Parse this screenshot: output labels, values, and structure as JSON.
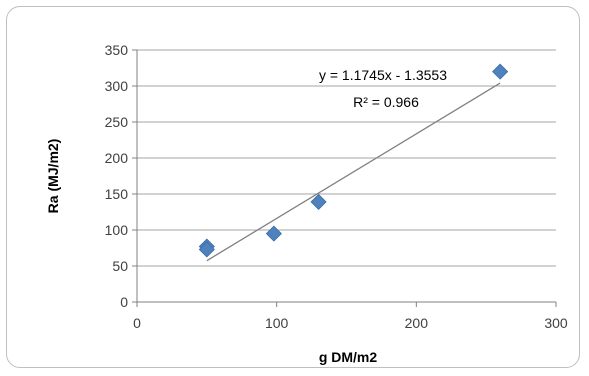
{
  "chart_data": {
    "type": "scatter",
    "title": "",
    "xlabel": "g DM/m2",
    "ylabel": "Ra (MJ/m2)",
    "xlim": [
      0,
      300
    ],
    "ylim": [
      0,
      350
    ],
    "x_ticks": [
      0,
      100,
      200,
      300
    ],
    "y_ticks": [
      0,
      50,
      100,
      150,
      200,
      250,
      300,
      350
    ],
    "grid": "horizontal",
    "legend": "none",
    "marker_color": "#4f81bd",
    "trendline_color": "#808080",
    "points": [
      {
        "x": 50,
        "y": 77
      },
      {
        "x": 50,
        "y": 73
      },
      {
        "x": 98,
        "y": 95
      },
      {
        "x": 130,
        "y": 139
      },
      {
        "x": 260,
        "y": 320
      }
    ],
    "trendline": {
      "type": "linear",
      "slope": 1.1745,
      "intercept": -1.3553,
      "x_range": [
        50,
        260
      ],
      "equation": "y = 1.1745x - 1.3553",
      "r_squared": "R² = 0.966"
    }
  }
}
